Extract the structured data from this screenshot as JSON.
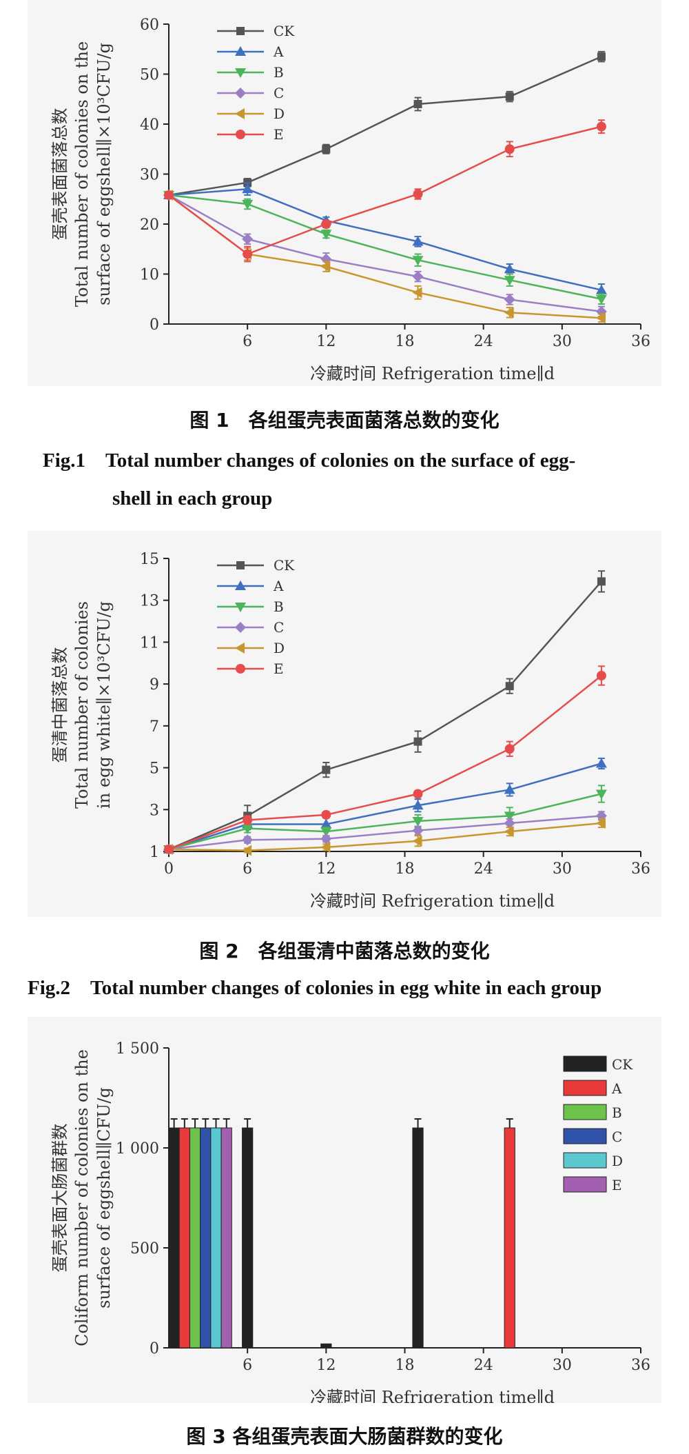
{
  "figures": [
    {
      "caption_cn": "图 1　各组蛋壳表面菌落总数的变化",
      "caption_en_line1": "Fig.1　Total number changes of colonies on the surface of egg-",
      "caption_en_line2": "shell in each group"
    },
    {
      "caption_cn": "图 2　各组蛋清中菌落总数的变化",
      "caption_en_line1": "Fig.2　Total number changes of colonies in egg white in each group"
    },
    {
      "caption_cn": "图 3 各组蛋壳表面大肠菌群数的变化"
    }
  ],
  "chart_data": [
    {
      "type": "line",
      "xlabel": "冷藏时间 Refrigeration time∥d",
      "ylabel_cn": "蛋壳表面菌落总数",
      "ylabel_en1": "Total number of colonies on the",
      "ylabel_en2": "surface of eggshell∥×10³CFU/g",
      "xlim": [
        0,
        36
      ],
      "ylim": [
        0,
        60
      ],
      "xticks": [
        "6",
        "12",
        "18",
        "24",
        "30",
        "36"
      ],
      "xtick_values": [
        6,
        12,
        18,
        24,
        30,
        36
      ],
      "yticks": [
        "0",
        "10",
        "20",
        "30",
        "40",
        "50",
        "60"
      ],
      "ytick_values": [
        0,
        10,
        20,
        30,
        40,
        50,
        60
      ],
      "x": [
        0,
        6,
        12,
        19,
        26,
        33
      ],
      "legend_position": "top-left",
      "series": [
        {
          "name": "CK",
          "color": "#555555",
          "marker": "square",
          "values": [
            25.8,
            28.3,
            35.0,
            44.0,
            45.5,
            53.5
          ],
          "errors": [
            0.5,
            0.8,
            0.9,
            1.3,
            1.0,
            1.0
          ]
        },
        {
          "name": "A",
          "color": "#3f6fbf",
          "marker": "triangle-up",
          "values": [
            25.8,
            27.0,
            20.7,
            16.5,
            11.0,
            6.8
          ],
          "errors": [
            0.5,
            1.2,
            0.7,
            1.0,
            1.0,
            1.2
          ]
        },
        {
          "name": "B",
          "color": "#4cb45a",
          "marker": "triangle-down",
          "values": [
            25.8,
            24.0,
            18.0,
            12.8,
            8.8,
            5.0
          ],
          "errors": [
            0.5,
            1.0,
            0.8,
            1.2,
            1.2,
            1.0
          ]
        },
        {
          "name": "C",
          "color": "#9b7fc4",
          "marker": "diamond",
          "values": [
            25.8,
            17.0,
            13.0,
            9.5,
            4.9,
            2.5
          ],
          "errors": [
            0.5,
            1.0,
            1.2,
            1.0,
            1.0,
            1.0
          ]
        },
        {
          "name": "D",
          "color": "#c9962e",
          "marker": "triangle-left",
          "values": [
            25.8,
            14.0,
            11.5,
            6.3,
            2.3,
            1.2
          ],
          "errors": [
            0.5,
            1.2,
            1.0,
            1.3,
            1.0,
            0.8
          ]
        },
        {
          "name": "E",
          "color": "#e74c4c",
          "marker": "circle",
          "values": [
            25.8,
            14.0,
            20.0,
            26.0,
            35.0,
            39.5
          ],
          "errors": [
            0.5,
            1.5,
            0.7,
            1.0,
            1.5,
            1.3
          ]
        }
      ]
    },
    {
      "type": "line",
      "xlabel": "冷藏时间 Refrigeration time∥d",
      "ylabel_cn": "蛋清中菌落总数",
      "ylabel_en1": "Total number of colonies",
      "ylabel_en2": "in egg white∥×10³CFU/g",
      "xlim": [
        0,
        36
      ],
      "ylim": [
        1,
        15
      ],
      "xticks": [
        "0",
        "6",
        "12",
        "18",
        "24",
        "30",
        "36"
      ],
      "xtick_values": [
        0,
        6,
        12,
        18,
        24,
        30,
        36
      ],
      "yticks": [
        "1",
        "3",
        "5",
        "7",
        "9",
        "11",
        "13",
        "15"
      ],
      "ytick_values": [
        1,
        3,
        5,
        7,
        9,
        11,
        13,
        15
      ],
      "x": [
        0,
        6,
        12,
        19,
        26,
        33
      ],
      "legend_position": "top-left",
      "series": [
        {
          "name": "CK",
          "color": "#555555",
          "marker": "square",
          "values": [
            1.1,
            2.7,
            4.9,
            6.25,
            8.9,
            13.9
          ],
          "errors": [
            0.1,
            0.5,
            0.35,
            0.5,
            0.35,
            0.5
          ]
        },
        {
          "name": "A",
          "color": "#3f6fbf",
          "marker": "triangle-up",
          "values": [
            1.1,
            2.3,
            2.3,
            3.2,
            3.95,
            5.2
          ],
          "errors": [
            0.1,
            0.25,
            0.3,
            0.3,
            0.3,
            0.25
          ]
        },
        {
          "name": "B",
          "color": "#4cb45a",
          "marker": "triangle-down",
          "values": [
            1.1,
            2.1,
            1.95,
            2.45,
            2.7,
            3.75
          ],
          "errors": [
            0.1,
            0.2,
            0.2,
            0.3,
            0.4,
            0.4
          ]
        },
        {
          "name": "C",
          "color": "#9b7fc4",
          "marker": "diamond",
          "values": [
            1.1,
            1.55,
            1.6,
            2.0,
            2.35,
            2.7
          ],
          "errors": [
            0.1,
            0.15,
            0.15,
            0.2,
            0.2,
            0.2
          ]
        },
        {
          "name": "D",
          "color": "#c9962e",
          "marker": "triangle-left",
          "values": [
            1.1,
            1.05,
            1.2,
            1.5,
            1.95,
            2.35
          ],
          "errors": [
            0.1,
            0.1,
            0.15,
            0.25,
            0.2,
            0.2
          ]
        },
        {
          "name": "E",
          "color": "#e74c4c",
          "marker": "circle",
          "values": [
            1.1,
            2.5,
            2.75,
            3.75,
            5.9,
            9.4
          ],
          "errors": [
            0.1,
            0.2,
            0.15,
            0.15,
            0.35,
            0.45
          ]
        }
      ]
    },
    {
      "type": "bar",
      "xlabel": "冷藏时间 Refrigeration time∥d",
      "ylabel_cn": "蛋壳表面大肠菌群数",
      "ylabel_en1": "Coliform number of colonies on the",
      "ylabel_en2": "surface of eggshell∥CFU/g",
      "xlim": [
        0,
        36
      ],
      "ylim": [
        0,
        1500
      ],
      "xticks": [
        "6",
        "12",
        "18",
        "24",
        "30",
        "36"
      ],
      "xtick_values": [
        6,
        12,
        18,
        24,
        30,
        36
      ],
      "yticks": [
        "0",
        "500",
        "1 000",
        "1 500"
      ],
      "ytick_values": [
        0,
        500,
        1000,
        1500
      ],
      "legend_position": "top-right",
      "series_names": [
        "CK",
        "A",
        "B",
        "C",
        "D",
        "E"
      ],
      "series_colors": [
        "#222222",
        "#e83a3a",
        "#6cc24a",
        "#2f53a8",
        "#5bc8d0",
        "#a35fb0"
      ],
      "bars": [
        {
          "series": "CK",
          "x": 0.4,
          "value": 1100,
          "error": 45
        },
        {
          "series": "A",
          "x": 1.2,
          "value": 1100,
          "error": 45
        },
        {
          "series": "B",
          "x": 2.0,
          "value": 1100,
          "error": 45
        },
        {
          "series": "C",
          "x": 2.8,
          "value": 1100,
          "error": 45
        },
        {
          "series": "D",
          "x": 3.6,
          "value": 1100,
          "error": 45
        },
        {
          "series": "E",
          "x": 4.4,
          "value": 1100,
          "error": 45
        },
        {
          "series": "CK",
          "x": 6.0,
          "value": 1100,
          "error": 45
        },
        {
          "series": "CK",
          "x": 12.0,
          "value": 20,
          "error": 0
        },
        {
          "series": "CK",
          "x": 19.0,
          "value": 1100,
          "error": 45
        },
        {
          "series": "A",
          "x": 26.0,
          "value": 1100,
          "error": 45
        }
      ]
    }
  ]
}
